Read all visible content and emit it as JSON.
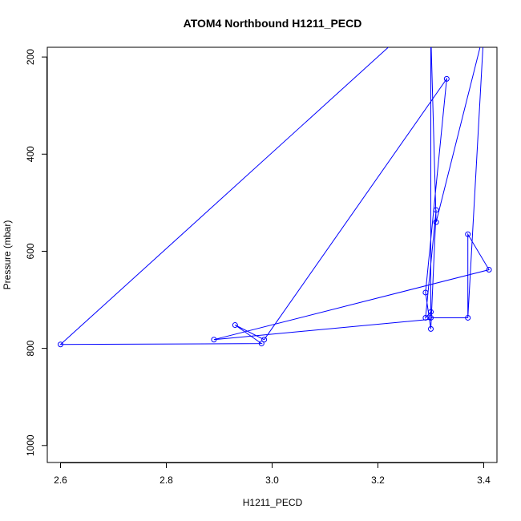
{
  "chart_data": {
    "type": "line",
    "title": "ATOM4 Northbound H1211_PECD",
    "xlabel": "H1211_PECD",
    "ylabel": "Pressure (mbar)",
    "xlim": [
      2.575,
      3.425
    ],
    "ylim": [
      1035,
      180
    ],
    "y_reversed": true,
    "x_ticks": [
      2.6,
      2.8,
      3.0,
      3.2,
      3.4
    ],
    "x_tick_labels": [
      "2.6",
      "2.8",
      "3.0",
      "3.2",
      "3.4"
    ],
    "y_ticks": [
      200,
      400,
      600,
      800,
      1000
    ],
    "y_tick_labels": [
      "200",
      "400",
      "600",
      "800",
      "1000"
    ],
    "series_color": "#0000ff",
    "points": [
      {
        "x": 3.37,
        "y": 737
      },
      {
        "x": 3.3,
        "y": 737
      },
      {
        "x": 3.3,
        "y": 725
      },
      {
        "x": 3.29,
        "y": 737
      },
      {
        "x": 3.31,
        "y": 515
      },
      {
        "x": 3.3,
        "y": 760
      },
      {
        "x": 3.29,
        "y": 685
      },
      {
        "x": 3.33,
        "y": 245
      },
      {
        "x": 2.985,
        "y": 782
      },
      {
        "x": 2.93,
        "y": 752
      },
      {
        "x": 2.98,
        "y": 790
      },
      {
        "x": 2.6,
        "y": 792
      },
      {
        "x": 2.89,
        "y": 782
      },
      {
        "x": 3.41,
        "y": 638
      },
      {
        "x": 3.37,
        "y": 565
      },
      {
        "x": 3.4,
        "y": 150
      },
      {
        "x": 3.31,
        "y": 540
      },
      {
        "x": 3.3,
        "y": 150
      }
    ],
    "line_x": [
      3.37,
      3.3,
      3.3,
      3.29,
      3.31,
      3.3,
      3.29,
      3.33,
      2.985,
      2.93,
      2.98,
      2.6,
      3.25,
      3.3,
      3.3,
      2.89,
      3.41,
      3.37,
      3.37,
      3.4,
      3.31,
      3.3
    ],
    "line_y": [
      737,
      737,
      725,
      737,
      515,
      760,
      685,
      245,
      782,
      752,
      790,
      792,
      150,
      150,
      740,
      782,
      638,
      565,
      737,
      150,
      540,
      150
    ],
    "grid": false,
    "legend": "none"
  }
}
